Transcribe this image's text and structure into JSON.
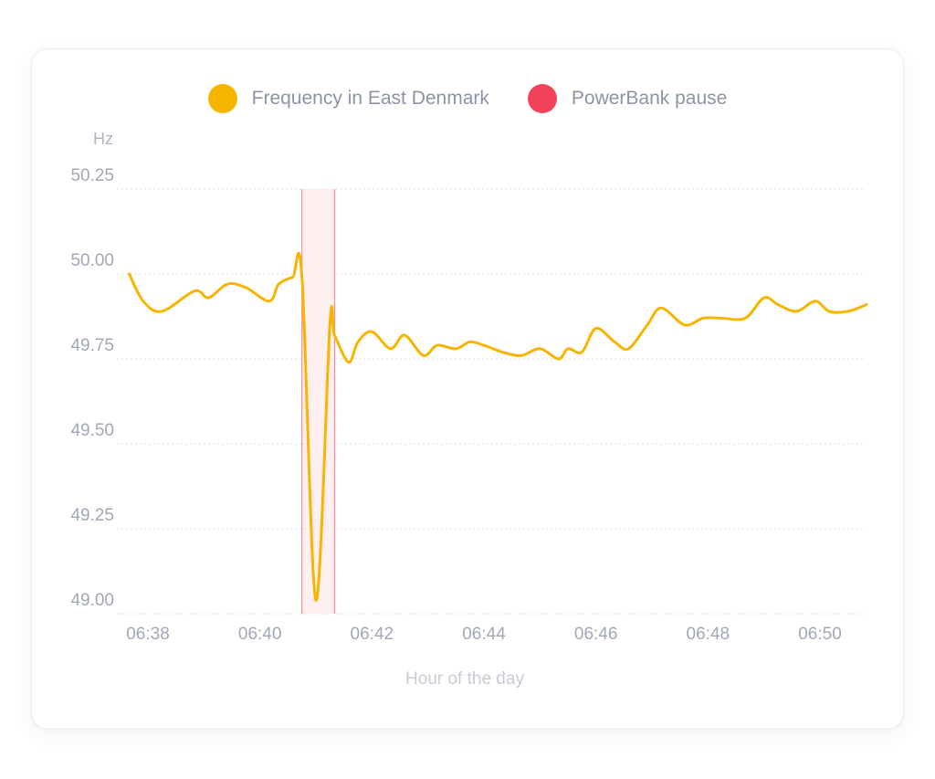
{
  "colors": {
    "frequency": "#f7b500",
    "pause": "#f2435a",
    "pause_fill": "#fde8ea",
    "grid": "#dcdee5"
  },
  "chart_data": {
    "type": "line",
    "title": "",
    "ylabel": "Hz",
    "xlabel": "Hour of the day",
    "ylim": [
      49.0,
      50.25
    ],
    "y_ticks": [
      "50.25",
      "50.00",
      "49.75",
      "49.50",
      "49.25",
      "49.00"
    ],
    "x_ticks": [
      "06:38",
      "06:40",
      "06:42",
      "06:44",
      "06:46",
      "06:48",
      "06:50"
    ],
    "legend": [
      "Frequency in East Denmark",
      "PowerBank pause"
    ],
    "series": [
      {
        "name": "Frequency in East Denmark",
        "x": [
          "06:37:40",
          "06:37:55",
          "06:38:15",
          "06:38:50",
          "06:39:05",
          "06:39:25",
          "06:39:45",
          "06:40:10",
          "06:40:20",
          "06:40:35",
          "06:40:45",
          "06:41:00",
          "06:41:15",
          "06:41:20",
          "06:41:35",
          "06:41:45",
          "06:42:00",
          "06:42:20",
          "06:42:35",
          "06:42:55",
          "06:43:10",
          "06:43:30",
          "06:43:45",
          "06:44:00",
          "06:44:20",
          "06:44:40",
          "06:45:00",
          "06:45:20",
          "06:45:30",
          "06:45:45",
          "06:46:00",
          "06:46:20",
          "06:46:35",
          "06:46:55",
          "06:47:10",
          "06:47:35",
          "06:47:55",
          "06:48:15",
          "06:48:40",
          "06:49:00",
          "06:49:15",
          "06:49:35",
          "06:49:55",
          "06:50:10",
          "06:50:30",
          "06:50:50"
        ],
        "values": [
          50.0,
          49.92,
          49.89,
          49.95,
          49.93,
          49.97,
          49.96,
          49.92,
          49.97,
          49.99,
          49.99,
          49.04,
          49.85,
          49.82,
          49.74,
          49.8,
          49.83,
          49.78,
          49.82,
          49.76,
          49.79,
          49.78,
          49.8,
          49.79,
          49.77,
          49.76,
          49.78,
          49.75,
          49.78,
          49.77,
          49.84,
          49.8,
          49.78,
          49.85,
          49.9,
          49.85,
          49.87,
          49.87,
          49.87,
          49.93,
          49.91,
          49.89,
          49.92,
          49.89,
          49.89,
          49.91
        ]
      }
    ],
    "pause_interval": [
      "06:40:45",
      "06:41:20"
    ]
  }
}
